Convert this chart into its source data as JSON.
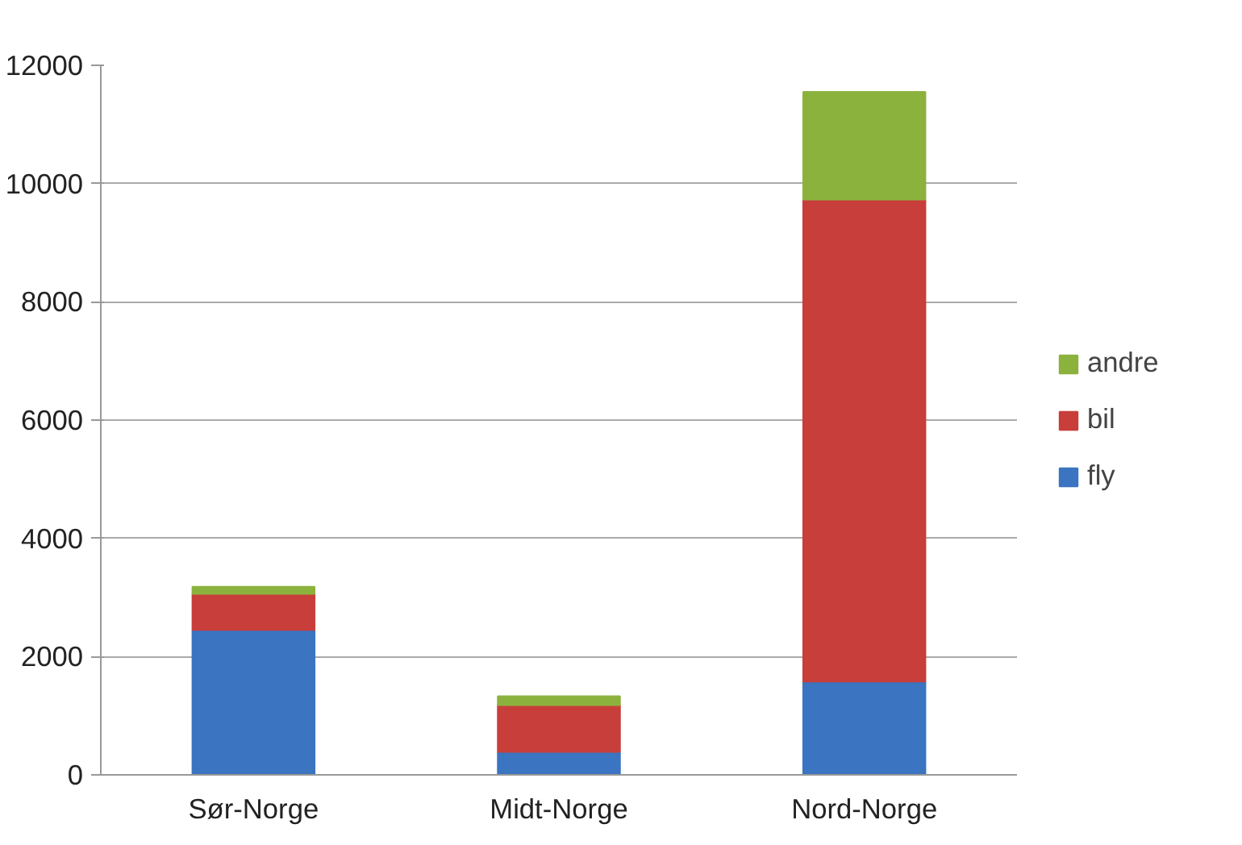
{
  "chart_data": {
    "type": "bar",
    "stacked": true,
    "categories": [
      "Sør-Norge",
      "Midt-Norge",
      "Nord-Norge"
    ],
    "series": [
      {
        "name": "fly",
        "color": "#3b74c0",
        "values": [
          2450,
          390,
          1580
        ]
      },
      {
        "name": "bil",
        "color": "#c83e3a",
        "values": [
          610,
          790,
          8150
        ]
      },
      {
        "name": "andre",
        "color": "#8cb23e",
        "values": [
          120,
          150,
          1820
        ]
      }
    ],
    "ylim": [
      0,
      12000
    ],
    "yticks": [
      0,
      2000,
      4000,
      6000,
      8000,
      10000,
      12000
    ],
    "grid": "y",
    "legend": "right"
  }
}
